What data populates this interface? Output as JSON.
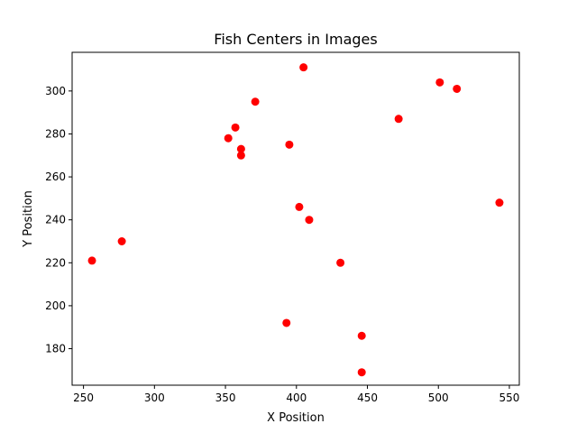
{
  "chart_data": {
    "type": "scatter",
    "title": "Fish Centers in Images",
    "xlabel": "X Position",
    "ylabel": "Y Position",
    "xlim": [
      242,
      557
    ],
    "ylim": [
      163,
      318
    ],
    "xticks": [
      250,
      300,
      350,
      400,
      450,
      500,
      550
    ],
    "yticks": [
      180,
      200,
      220,
      240,
      260,
      280,
      300
    ],
    "grid": false,
    "marker_color": "#ff0000",
    "series": [
      {
        "points": [
          {
            "x": 256,
            "y": 221
          },
          {
            "x": 277,
            "y": 230
          },
          {
            "x": 352,
            "y": 278
          },
          {
            "x": 357,
            "y": 283
          },
          {
            "x": 361,
            "y": 273
          },
          {
            "x": 361,
            "y": 270
          },
          {
            "x": 371,
            "y": 295
          },
          {
            "x": 393,
            "y": 192
          },
          {
            "x": 395,
            "y": 275
          },
          {
            "x": 402,
            "y": 246
          },
          {
            "x": 405,
            "y": 311
          },
          {
            "x": 409,
            "y": 240
          },
          {
            "x": 431,
            "y": 220
          },
          {
            "x": 446,
            "y": 186
          },
          {
            "x": 446,
            "y": 169
          },
          {
            "x": 472,
            "y": 287
          },
          {
            "x": 501,
            "y": 304
          },
          {
            "x": 513,
            "y": 301
          },
          {
            "x": 543,
            "y": 248
          }
        ]
      }
    ]
  }
}
